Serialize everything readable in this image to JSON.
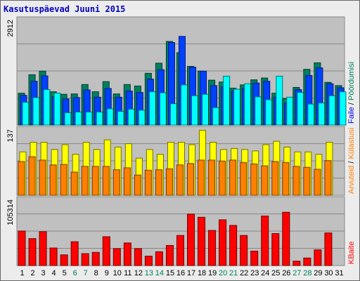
{
  "window": {
    "title": "Kasutuspäevad Juuni 2015"
  },
  "legend_right": {
    "hits": {
      "text": "Pöördumisi",
      "color": "#008060"
    },
    "files": {
      "text": "Faile",
      "color": "#0000ff"
    },
    "pages": {
      "text": "Külastajaid",
      "color": "#ffff00"
    },
    "visits": {
      "text": "Külastusi",
      "color": "#ff8000"
    },
    "sites": {
      "text": "Arvuteid",
      "color": "#ff8000"
    },
    "kbytes": {
      "text": "KBaite",
      "color": "#ff0000"
    },
    "separator": "/"
  },
  "chart_data": [
    {
      "type": "bar",
      "name_hint": "hits-files-pages",
      "categories": [
        "1",
        "2",
        "3",
        "4",
        "5",
        "6",
        "7",
        "8",
        "9",
        "10",
        "11",
        "12",
        "13",
        "14",
        "15",
        "16",
        "17",
        "18",
        "19",
        "20",
        "21",
        "22",
        "23",
        "24",
        "25",
        "26",
        "27",
        "28",
        "29",
        "30",
        "31"
      ],
      "ymax_label": "2912",
      "ylim": [
        0,
        2912
      ],
      "series": [
        {
          "name": "Pöördumisi",
          "color": "#00805f",
          "values": [
            880,
            1390,
            1490,
            920,
            850,
            860,
            1120,
            920,
            1200,
            860,
            1120,
            1080,
            1430,
            1710,
            2310,
            2000,
            1620,
            1490,
            1240,
            1190,
            1020,
            1110,
            1250,
            1300,
            880,
            730,
            1040,
            1540,
            1720,
            1180,
            1090
          ]
        },
        {
          "name": "Faile",
          "color": "#0040ff",
          "values": [
            820,
            1210,
            1360,
            780,
            720,
            760,
            970,
            770,
            1010,
            770,
            940,
            900,
            1270,
            1530,
            2280,
            2450,
            1600,
            1490,
            1090,
            1060,
            940,
            1010,
            1160,
            1210,
            770,
            610,
            980,
            1370,
            1580,
            1140,
            1030
          ]
        },
        {
          "name": "Külastajaid",
          "color": "#00ffff",
          "values": [
            630,
            760,
            980,
            880,
            340,
            360,
            360,
            360,
            450,
            380,
            440,
            410,
            920,
            890,
            590,
            1110,
            810,
            850,
            480,
            1350,
            990,
            1140,
            780,
            700,
            1350,
            770,
            900,
            580,
            610,
            810,
            920
          ]
        }
      ]
    },
    {
      "type": "bar",
      "name_hint": "visits-sites",
      "categories": [
        "1",
        "2",
        "3",
        "4",
        "5",
        "6",
        "7",
        "8",
        "9",
        "10",
        "11",
        "12",
        "13",
        "14",
        "15",
        "16",
        "17",
        "18",
        "19",
        "20",
        "21",
        "22",
        "23",
        "24",
        "25",
        "26",
        "27",
        "28",
        "29",
        "30",
        "31"
      ],
      "ymax_label": "137",
      "ylim": [
        0,
        137
      ],
      "series": [
        {
          "name": "Külastusi",
          "color": "#ffff00",
          "values": [
            90,
            110,
            110,
            95,
            105,
            85,
            110,
            95,
            115,
            100,
            107,
            77,
            95,
            85,
            110,
            110,
            105,
            135,
            110,
            95,
            97,
            95,
            92,
            105,
            112,
            100,
            90,
            90,
            85,
            110,
            0
          ]
        },
        {
          "name": "Arvuteid",
          "color": "#ff8000",
          "values": [
            70,
            80,
            73,
            63,
            64,
            48,
            60,
            60,
            60,
            53,
            57,
            42,
            52,
            53,
            55,
            63,
            66,
            73,
            73,
            71,
            73,
            68,
            65,
            61,
            70,
            68,
            60,
            58,
            54,
            72,
            0
          ]
        }
      ]
    },
    {
      "type": "bar",
      "name_hint": "kbytes",
      "categories": [
        "1",
        "2",
        "3",
        "4",
        "5",
        "6",
        "7",
        "8",
        "9",
        "10",
        "11",
        "12",
        "13",
        "14",
        "15",
        "16",
        "17",
        "18",
        "19",
        "20",
        "21",
        "22",
        "23",
        "24",
        "25",
        "26",
        "27",
        "28",
        "29",
        "30",
        "31"
      ],
      "ymax_label": "105314",
      "ylim": [
        0,
        105314
      ],
      "series": [
        {
          "name": "KBaite",
          "color": "#ff0000",
          "values": [
            55000,
            43000,
            54000,
            28000,
            17000,
            38000,
            19000,
            21000,
            46000,
            27000,
            36000,
            27000,
            15000,
            22000,
            32000,
            48000,
            82000,
            77000,
            56000,
            73000,
            64000,
            48000,
            23000,
            79000,
            51000,
            85000,
            7000,
            12000,
            25000,
            52000,
            0
          ]
        }
      ]
    }
  ]
}
